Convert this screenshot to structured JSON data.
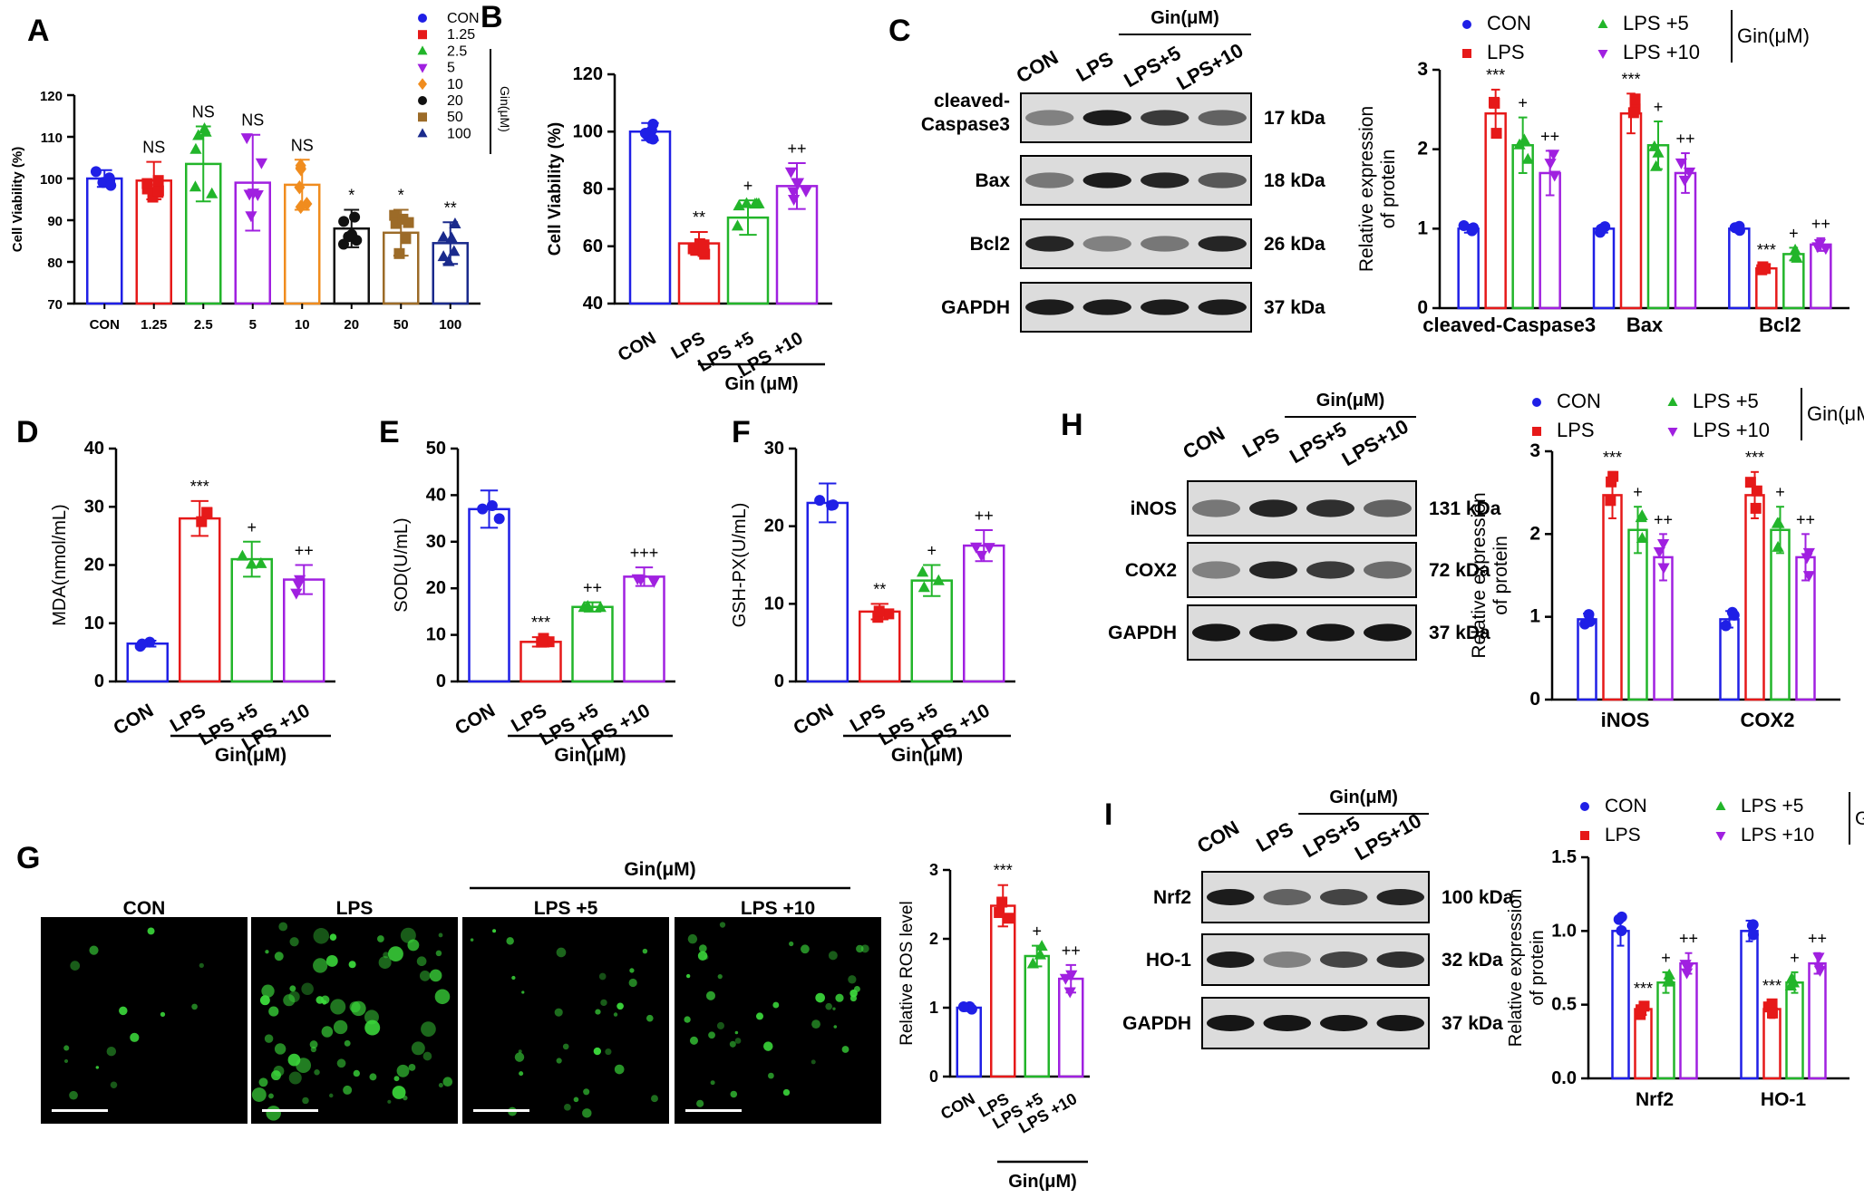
{
  "colors": {
    "CON": "#1f1fe6",
    "LPS": "#e61919",
    "L5": "#22b52a",
    "L10": "#a020e0",
    "c125": "#e61919",
    "c25": "#22b52a",
    "c5": "#a020e0",
    "c10": "#f08c1e",
    "c20": "#111111",
    "c50": "#9c6b28",
    "c100": "#1a2a8c",
    "black": "#000000"
  },
  "panel_letters": [
    "A",
    "B",
    "C",
    "D",
    "E",
    "F",
    "G",
    "H",
    "I"
  ],
  "gin_um": "Gin(μM)",
  "gin_um_spaced": "Gin (μM)",
  "blot_c": {
    "lanes": [
      "CON",
      "LPS",
      "LPS+5",
      "LPS+10"
    ],
    "rows": [
      {
        "label": "cleaved-",
        "label2": "Caspase3",
        "kda": "17 kDa"
      },
      {
        "label": "Bax",
        "kda": "18 kDa"
      },
      {
        "label": "Bcl2",
        "kda": "26 kDa"
      },
      {
        "label": "GAPDH",
        "kda": "37 kDa"
      }
    ]
  },
  "blot_h": {
    "lanes": [
      "CON",
      "LPS",
      "LPS+5",
      "LPS+10"
    ],
    "rows": [
      {
        "label": "iNOS",
        "kda": "131 kDa"
      },
      {
        "label": "COX2",
        "kda": "72 kDa"
      },
      {
        "label": "GAPDH",
        "kda": "37 kDa"
      }
    ]
  },
  "blot_i": {
    "lanes": [
      "CON",
      "LPS",
      "LPS+5",
      "LPS+10"
    ],
    "rows": [
      {
        "label": "Nrf2",
        "kda": "100 kDa"
      },
      {
        "label": "HO-1",
        "kda": "32 kDa"
      },
      {
        "label": "GAPDH",
        "kda": "37 kDa"
      }
    ]
  },
  "micro_g": {
    "labels": [
      "CON",
      "LPS",
      "LPS +5",
      "LPS +10"
    ]
  },
  "chart_data": [
    {
      "id": "A",
      "type": "bar",
      "ylabel": "Cell Viability (%)",
      "ylim": [
        70,
        120
      ],
      "yticks": [
        70,
        80,
        90,
        100,
        110,
        120
      ],
      "categories": [
        "CON",
        "1.25",
        "2.5",
        "5",
        "10",
        "20",
        "50",
        "100"
      ],
      "values": [
        100,
        99.5,
        103.5,
        99,
        98.5,
        88,
        87,
        84.5
      ],
      "errors": [
        2,
        4.5,
        9,
        11.5,
        6,
        4.5,
        5.5,
        5
      ],
      "sig": [
        "",
        "NS",
        "NS",
        "NS",
        "NS",
        "*",
        "*",
        "**"
      ],
      "legend": [
        "CON",
        "1.25",
        "2.5",
        "5",
        "10",
        "20",
        "50",
        "100"
      ],
      "legend_group": "Gin(μM)"
    },
    {
      "id": "B",
      "type": "bar",
      "ylabel": "Cell Viability (%)",
      "ylim": [
        40,
        120
      ],
      "yticks": [
        40,
        60,
        80,
        100,
        120
      ],
      "categories": [
        "CON",
        "LPS",
        "LPS +5",
        "LPS +10"
      ],
      "values": [
        100,
        61,
        70,
        81
      ],
      "errors": [
        3,
        4,
        6,
        8
      ],
      "sig": [
        "",
        "**",
        "+",
        "++"
      ]
    },
    {
      "id": "C",
      "type": "bar",
      "ylabel": "Relative expression",
      "ylabel2": "of protein",
      "ylim": [
        0,
        3
      ],
      "yticks": [
        0,
        1,
        2,
        3
      ],
      "groups": [
        "cleaved-Caspase3",
        "Bax",
        "Bcl2"
      ],
      "series": [
        {
          "name": "CON",
          "values": [
            1,
            1,
            1
          ]
        },
        {
          "name": "LPS",
          "values": [
            2.45,
            2.45,
            0.5
          ]
        },
        {
          "name": "LPS +5",
          "values": [
            2.05,
            2.05,
            0.68
          ]
        },
        {
          "name": "LPS +10",
          "values": [
            1.7,
            1.7,
            0.8
          ]
        }
      ],
      "errors": [
        [
          0.05,
          0.3,
          0.35,
          0.28
        ],
        [
          0.05,
          0.25,
          0.3,
          0.25
        ],
        [
          0.05,
          0.05,
          0.08,
          0.08
        ]
      ],
      "sig": [
        [
          "",
          "***",
          "+",
          "++"
        ],
        [
          "",
          "***",
          "+",
          "++"
        ],
        [
          "",
          "***",
          "+",
          "++"
        ]
      ],
      "legend": [
        "CON",
        "LPS",
        "LPS +5",
        "LPS +10"
      ],
      "legend_group": "Gin(μM)"
    },
    {
      "id": "D",
      "type": "bar",
      "ylabel": "MDA(nmol/mL)",
      "ylim": [
        0,
        40
      ],
      "yticks": [
        0,
        10,
        20,
        30,
        40
      ],
      "categories": [
        "CON",
        "LPS",
        "LPS +5",
        "LPS +10"
      ],
      "values": [
        6.5,
        28,
        21,
        17.5
      ],
      "errors": [
        0.5,
        3,
        3,
        2.5
      ],
      "sig": [
        "",
        "***",
        "+",
        "++"
      ]
    },
    {
      "id": "E",
      "type": "bar",
      "ylabel": "SOD(U/mL)",
      "ylim": [
        0,
        50
      ],
      "yticks": [
        0,
        10,
        20,
        30,
        40,
        50
      ],
      "categories": [
        "CON",
        "LPS",
        "LPS +5",
        "LPS +10"
      ],
      "values": [
        37,
        8.5,
        16,
        22.5
      ],
      "errors": [
        4,
        1,
        1,
        2
      ],
      "sig": [
        "",
        "***",
        "++",
        "+++"
      ]
    },
    {
      "id": "F",
      "type": "bar",
      "ylabel": "GSH-PX(U/mL)",
      "ylim": [
        0,
        30
      ],
      "yticks": [
        0,
        10,
        20,
        30
      ],
      "categories": [
        "CON",
        "LPS",
        "LPS +5",
        "LPS +10"
      ],
      "values": [
        23,
        9,
        13,
        17.5
      ],
      "errors": [
        2.5,
        1,
        2,
        2
      ],
      "sig": [
        "",
        "**",
        "+",
        "++"
      ]
    },
    {
      "id": "G",
      "type": "bar",
      "ylabel": "Relative ROS level",
      "ylim": [
        0,
        3
      ],
      "yticks": [
        0,
        1,
        2,
        3
      ],
      "categories": [
        "CON",
        "LPS",
        "LPS +5",
        "LPS +10"
      ],
      "values": [
        1,
        2.48,
        1.75,
        1.42
      ],
      "errors": [
        0.05,
        0.3,
        0.15,
        0.2
      ],
      "sig": [
        "",
        "***",
        "+",
        "++"
      ]
    },
    {
      "id": "H",
      "type": "bar",
      "ylabel": "Relative expression",
      "ylabel2": "of protein",
      "ylim": [
        0,
        3
      ],
      "yticks": [
        0,
        1,
        2,
        3
      ],
      "groups": [
        "iNOS",
        "COX2"
      ],
      "series": [
        {
          "name": "CON",
          "values": [
            0.97,
            0.97
          ]
        },
        {
          "name": "LPS",
          "values": [
            2.47,
            2.47
          ]
        },
        {
          "name": "LPS +5",
          "values": [
            2.05,
            2.05
          ]
        },
        {
          "name": "LPS +10",
          "values": [
            1.72,
            1.72
          ]
        }
      ],
      "errors": [
        [
          0.07,
          0.28,
          0.28,
          0.28
        ],
        [
          0.1,
          0.28,
          0.28,
          0.28
        ]
      ],
      "sig": [
        [
          "",
          "***",
          "+",
          "++"
        ],
        [
          "",
          "***",
          "+",
          "++"
        ]
      ],
      "legend": [
        "CON",
        "LPS",
        "LPS +5",
        "LPS +10"
      ],
      "legend_group": "Gin(μM)"
    },
    {
      "id": "I",
      "type": "bar",
      "ylabel": "Relative expression",
      "ylabel2": "of protein",
      "ylim": [
        0,
        1.5
      ],
      "yticks": [
        "0.0",
        "0.5",
        "1.0",
        "1.5"
      ],
      "groups": [
        "Nrf2",
        "HO-1"
      ],
      "series": [
        {
          "name": "CON",
          "values": [
            1.0,
            1.0
          ]
        },
        {
          "name": "LPS",
          "values": [
            0.47,
            0.47
          ]
        },
        {
          "name": "LPS +5",
          "values": [
            0.65,
            0.65
          ]
        },
        {
          "name": "LPS +10",
          "values": [
            0.78,
            0.78
          ]
        }
      ],
      "errors": [
        [
          0.1,
          0.04,
          0.07,
          0.07
        ],
        [
          0.07,
          0.06,
          0.07,
          0.07
        ]
      ],
      "sig": [
        [
          "",
          "***",
          "+",
          "++"
        ],
        [
          "",
          "***",
          "+",
          "++"
        ]
      ],
      "legend": [
        "CON",
        "LPS",
        "LPS +5",
        "LPS +10"
      ],
      "legend_group": "Gin(μM)"
    }
  ]
}
